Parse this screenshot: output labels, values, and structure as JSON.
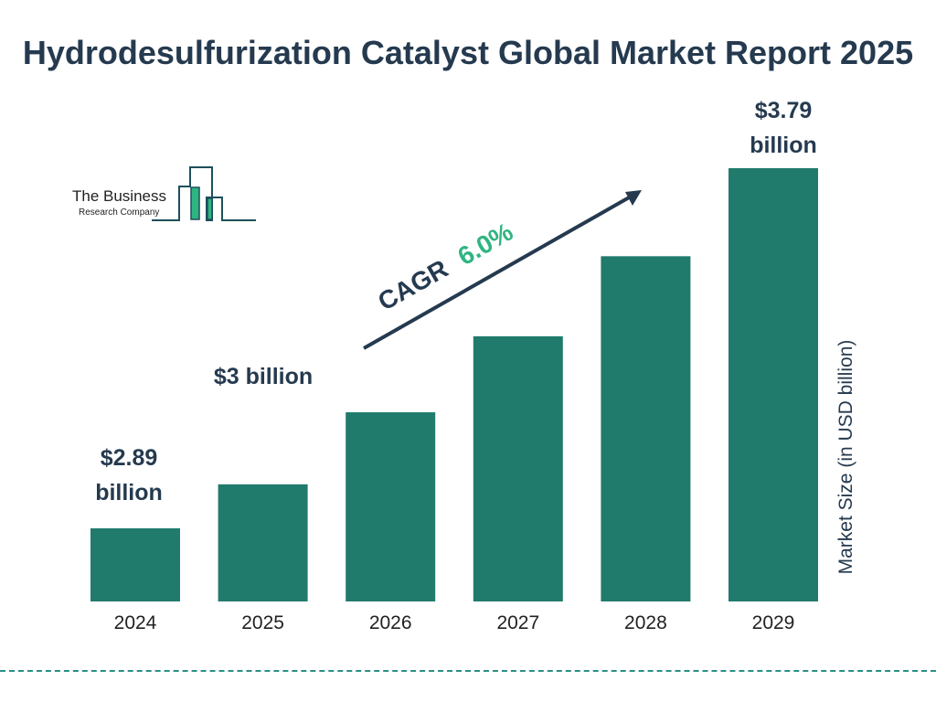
{
  "title": "Hydrodesulfurization Catalyst Global Market Report 2025",
  "logo": {
    "line1": "The Business",
    "line2": "Research Company"
  },
  "colors": {
    "bar": "#217b6c",
    "text": "#253a4f",
    "cagr": "#2fb581",
    "divider": "#2a8f88"
  },
  "chart_data": {
    "type": "bar",
    "title": "Hydrodesulfurization Catalyst Global Market Report 2025",
    "categories": [
      "2024",
      "2025",
      "2026",
      "2027",
      "2028",
      "2029"
    ],
    "values": [
      2.89,
      3.0,
      3.18,
      3.37,
      3.57,
      3.79
    ],
    "data_labels": [
      "$2.89 billion",
      "$3 billion",
      "",
      "",
      "",
      "$3.79 billion"
    ],
    "ylabel": "Market Size (in USD billion)",
    "xlabel": "",
    "grid": false,
    "annotation": {
      "label": "CAGR",
      "value": "6.0%"
    }
  }
}
